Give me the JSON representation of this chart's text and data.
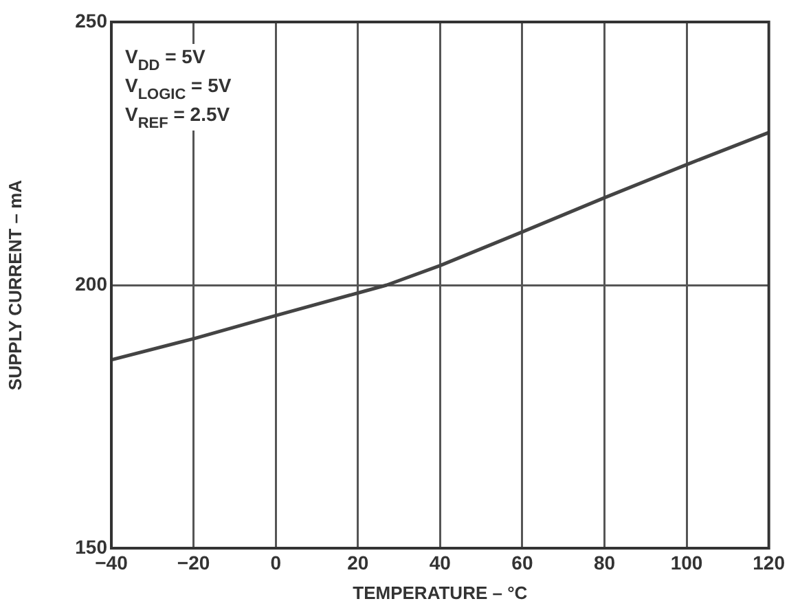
{
  "chart_data": {
    "type": "line",
    "xlabel": "TEMPERATURE – °C",
    "ylabel": "SUPPLY CURRENT – mA",
    "x": [
      -40,
      -20,
      0,
      20,
      27,
      40,
      60,
      80,
      100,
      120
    ],
    "series": [
      {
        "color": "#444444",
        "values": [
          185.8,
          189.8,
          194.2,
          198.5,
          200,
          203.7,
          210.1,
          216.6,
          222.9,
          229
        ]
      }
    ],
    "xlim": [
      -40,
      120
    ],
    "xticks": [
      -40,
      -20,
      0,
      20,
      40,
      60,
      80,
      100,
      120
    ],
    "ylim": [
      150,
      250
    ],
    "yticks": [
      150,
      200,
      250
    ],
    "grid": true,
    "legend": false,
    "marker": "none",
    "line_style": "solid",
    "annotations": [
      "V$_{DD}$ = 5V",
      "V$_{LOGIC}$ = 5V",
      "V$_{REF}$ = 2.5V"
    ]
  }
}
